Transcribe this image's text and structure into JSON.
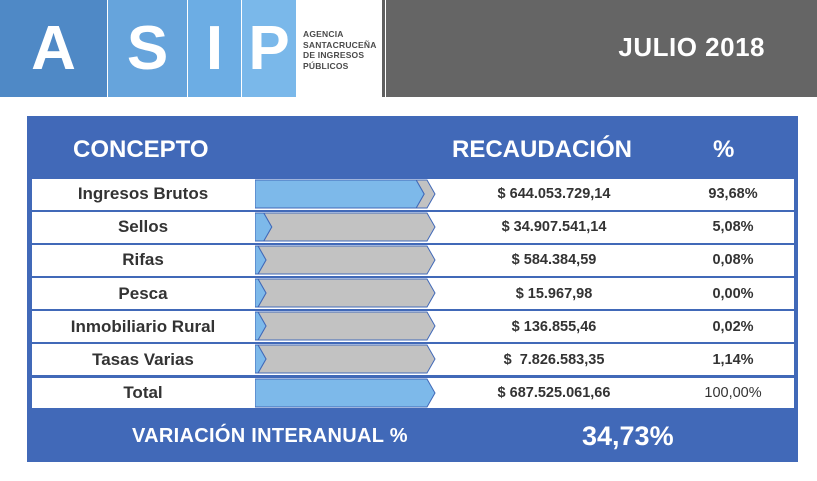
{
  "header": {
    "logo_letters": [
      "A",
      "S",
      "I",
      "P"
    ],
    "agency_lines": [
      "AGENCIA",
      "SANTACRUCEÑA",
      "DE INGRESOS",
      "PÚBLICOS"
    ],
    "period": "JULIO 2018"
  },
  "colors": {
    "panel": "#4169b8",
    "bar_blue": "#7db9ea",
    "bar_grey": "#c2c2c2",
    "header_grey": "#656565"
  },
  "table": {
    "col_concepto": "CONCEPTO",
    "col_recaudacion": "RECAUDACIÓN",
    "col_pct": "%",
    "rows": [
      {
        "concepto": "Ingresos Brutos",
        "recaudacion": "$ 644.053.729,14",
        "pct": "93,68%",
        "share": 0.9368
      },
      {
        "concepto": "Sellos",
        "recaudacion": "$ 34.907.541,14",
        "pct": "5,08%",
        "share": 0.0508
      },
      {
        "concepto": "Rifas",
        "recaudacion": "$ 584.384,59",
        "pct": "0,08%",
        "share": 0.0008
      },
      {
        "concepto": "Pesca",
        "recaudacion": "$ 15.967,98",
        "pct": "0,00%",
        "share": 0.0
      },
      {
        "concepto": "Inmobiliario Rural",
        "recaudacion": "$ 136.855,46",
        "pct": "0,02%",
        "share": 0.0002
      },
      {
        "concepto": "Tasas Varias",
        "recaudacion": "$  7.826.583,35",
        "pct": "1,14%",
        "share": 0.0114
      },
      {
        "concepto": "Total",
        "recaudacion": "$ 687.525.061,66",
        "pct": "100,00%",
        "share": 1.0
      }
    ]
  },
  "footer": {
    "label": "VARIACIÓN INTERANUAL %",
    "value": "34,73%"
  }
}
